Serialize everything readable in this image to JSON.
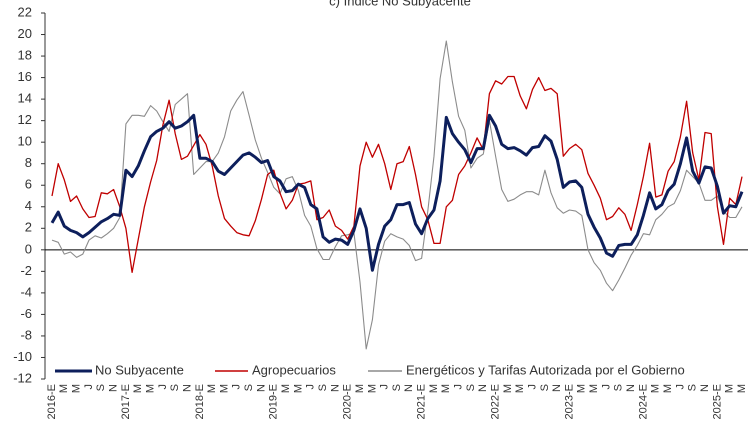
{
  "chart_data": {
    "type": "line",
    "title": "c) Índice No Subyacente",
    "categories": [
      "2016-E",
      null,
      "M",
      null,
      "M",
      null,
      "J",
      null,
      "S",
      null,
      "N",
      null,
      "2017-E",
      null,
      "M",
      null,
      "M",
      null,
      "J",
      null,
      "S",
      null,
      "N",
      null,
      "2018-E",
      null,
      "M",
      null,
      "M",
      null,
      "J",
      null,
      "S",
      null,
      "N",
      null,
      "2019-E",
      null,
      "M",
      null,
      "M",
      null,
      "J",
      null,
      "S",
      null,
      "N",
      null,
      "2020-E",
      null,
      "M",
      null,
      "M",
      null,
      "J",
      null,
      "S",
      null,
      "N",
      null,
      "2021-E",
      null,
      "M",
      null,
      "M",
      null,
      "J",
      null,
      "S",
      null,
      "N",
      null,
      "2022-E",
      null,
      "M",
      null,
      "M",
      null,
      "J",
      null,
      "S",
      null,
      "N",
      null,
      "2023-E",
      null,
      "M",
      null,
      "M",
      null,
      "J",
      null,
      "S",
      null,
      "N",
      null,
      "2024-E",
      null,
      "M",
      null,
      "M",
      null,
      "J",
      null,
      "S",
      null,
      "N",
      null,
      "2025-E",
      null,
      "M",
      null,
      "M"
    ],
    "series": [
      {
        "name": "No Subyacente",
        "color": "#0d1f5c",
        "values": [
          2.5,
          3.5,
          2.2,
          1.8,
          1.6,
          1.2,
          1.6,
          2.1,
          2.6,
          2.9,
          3.3,
          3.2,
          7.4,
          6.8,
          7.8,
          9.2,
          10.5,
          11.0,
          11.3,
          11.9,
          11.3,
          11.5,
          11.9,
          12.5,
          8.5,
          8.5,
          8.2,
          7.3,
          7.0,
          7.6,
          8.2,
          8.8,
          9.0,
          8.6,
          8.1,
          8.3,
          6.8,
          6.4,
          5.4,
          5.5,
          6.1,
          5.8,
          4.2,
          3.8,
          1.2,
          0.7,
          1.0,
          0.9,
          0.5,
          1.8,
          3.8,
          2.0,
          -1.9,
          0.5,
          2.2,
          2.8,
          4.2,
          4.2,
          4.4,
          2.4,
          1.5,
          2.9,
          3.7,
          6.4,
          12.3,
          10.8,
          10.0,
          9.3,
          8.1,
          9.4,
          9.4,
          12.5,
          11.5,
          9.8,
          9.4,
          9.5,
          9.2,
          8.8,
          9.5,
          9.6,
          10.6,
          10.1,
          8.4,
          5.8,
          6.3,
          6.4,
          5.8,
          3.3,
          2.1,
          1.1,
          -0.3,
          -0.6,
          0.4,
          0.5,
          0.5,
          1.4,
          3.2,
          5.3,
          3.8,
          4.2,
          5.5,
          6.1,
          8.0,
          10.4,
          7.3,
          6.2,
          7.7,
          7.6,
          5.9,
          3.4,
          4.1,
          4.0,
          5.4
        ]
      },
      {
        "name": "Agropecuarios",
        "color": "#c00000",
        "values": [
          5.0,
          8.0,
          6.5,
          4.5,
          5.0,
          3.8,
          3.0,
          3.1,
          5.3,
          5.2,
          5.6,
          4.0,
          2.0,
          -2.1,
          1.0,
          4.0,
          6.3,
          8.3,
          11.6,
          13.9,
          10.8,
          8.4,
          8.7,
          9.7,
          10.7,
          9.8,
          7.8,
          5.0,
          2.9,
          2.2,
          1.6,
          1.4,
          1.3,
          2.7,
          4.7,
          7.0,
          7.4,
          5.3,
          3.8,
          4.6,
          6.1,
          6.2,
          6.4,
          2.8,
          3.0,
          3.7,
          2.2,
          1.8,
          1.0,
          2.2,
          7.8,
          10.0,
          8.6,
          9.8,
          8.0,
          5.6,
          8.0,
          8.2,
          9.6,
          7.0,
          4.0,
          2.8,
          0.6,
          0.6,
          4.0,
          4.6,
          7.0,
          7.8,
          9.0,
          10.4,
          9.3,
          14.5,
          15.7,
          15.4,
          16.1,
          16.1,
          14.3,
          13.1,
          14.9,
          16.0,
          14.8,
          15.0,
          14.5,
          8.7,
          9.4,
          9.8,
          9.3,
          7.1,
          6.0,
          4.8,
          2.8,
          3.1,
          3.9,
          3.3,
          1.8,
          4.2,
          6.8,
          9.9,
          4.9,
          5.1,
          7.3,
          8.2,
          10.5,
          13.8,
          9.0,
          6.5,
          10.9,
          10.8,
          4.0,
          0.5,
          4.8,
          4.2,
          6.8
        ]
      },
      {
        "name": "Energéticos y Tarifas Autorizada por el Gobierno",
        "color": "#8c8c8c",
        "values": [
          0.9,
          0.7,
          -0.4,
          -0.2,
          -0.7,
          -0.4,
          0.9,
          1.3,
          1.1,
          1.5,
          2.0,
          3.0,
          11.7,
          12.5,
          12.5,
          12.4,
          13.4,
          12.9,
          11.9,
          11.0,
          13.5,
          14.0,
          14.5,
          7.0,
          7.6,
          8.2,
          8.2,
          9.0,
          10.5,
          12.9,
          13.9,
          14.7,
          12.5,
          10.2,
          8.5,
          7.2,
          5.8,
          5.2,
          6.6,
          6.8,
          5.5,
          3.2,
          2.2,
          0.1,
          -0.9,
          -0.9,
          0.3,
          1.3,
          1.4,
          1.6,
          -3.0,
          -9.2,
          -6.5,
          -1.4,
          0.8,
          1.5,
          1.2,
          1.0,
          0.4,
          -1.0,
          -0.8,
          3.6,
          8.7,
          15.9,
          19.4,
          15.6,
          12.4,
          11.1,
          7.6,
          8.5,
          8.9,
          12.0,
          8.7,
          5.6,
          4.5,
          4.7,
          5.1,
          5.4,
          5.4,
          5.1,
          7.4,
          5.3,
          3.9,
          3.4,
          3.7,
          3.6,
          3.2,
          0.0,
          -1.2,
          -1.9,
          -3.1,
          -3.8,
          -2.8,
          -1.7,
          -0.5,
          0.4,
          1.5,
          1.4,
          2.8,
          3.3,
          4.0,
          4.3,
          5.5,
          7.4,
          6.8,
          6.2,
          4.6,
          4.6,
          5.0,
          3.6,
          3.0,
          3.0,
          4.0
        ]
      }
    ],
    "ylim": [
      -12,
      22
    ],
    "yticks": [
      -12,
      -10,
      -8,
      -6,
      -4,
      -2,
      0,
      2,
      4,
      6,
      8,
      10,
      12,
      14,
      16,
      18,
      20,
      22
    ]
  }
}
